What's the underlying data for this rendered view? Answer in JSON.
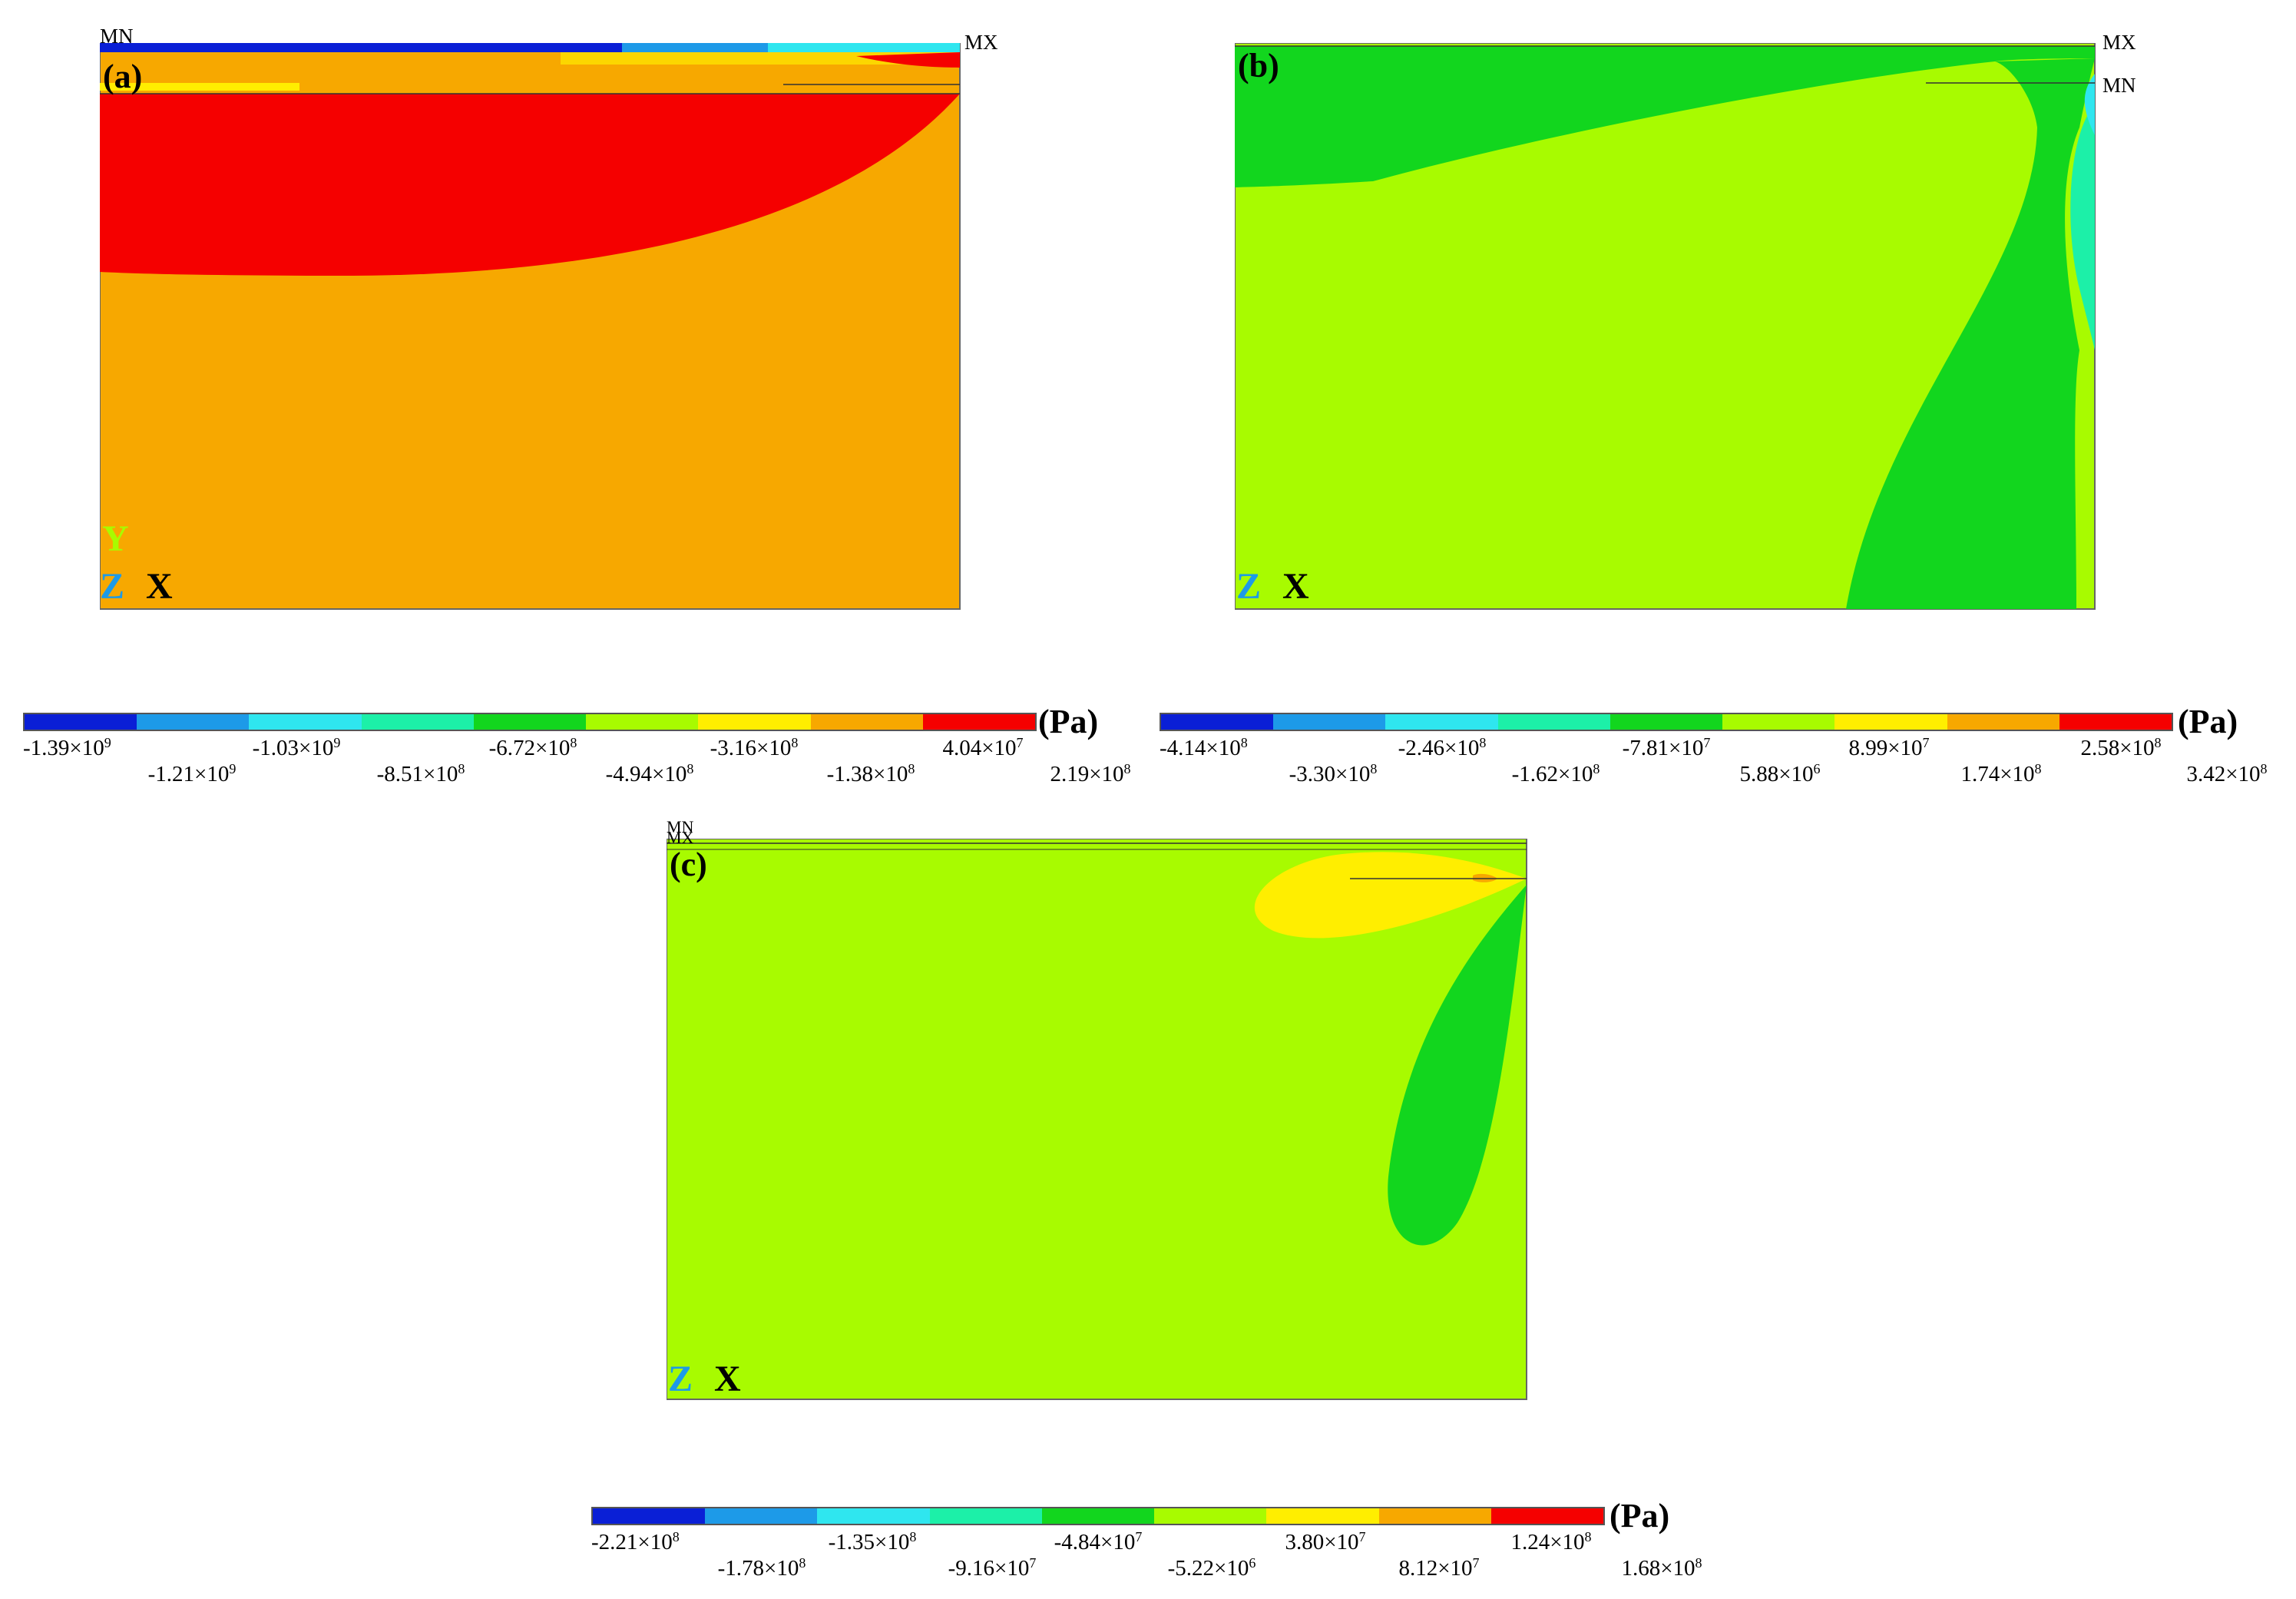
{
  "colormap": [
    "#0a1fd6",
    "#1d9ae8",
    "#2fe6ef",
    "#1cf0a8",
    "#12d61e",
    "#a8fb00",
    "#ffee00",
    "#f7a800",
    "#f50000"
  ],
  "panels": [
    {
      "id": "a",
      "label": "(a)",
      "mn": "MN",
      "mx": "MX",
      "axes": {
        "y": "Y",
        "z": "Z",
        "x": "X"
      },
      "unit": "(Pa)",
      "ticks_top": [
        "-1.39×10",
        "-1.03×10",
        "-6.72×10",
        "-3.16×10",
        "4.04×10"
      ],
      "exps_top": [
        "9",
        "9",
        "8",
        "8",
        "7"
      ],
      "ticks_bottom": [
        "-1.21×10",
        "-8.51×10",
        "-4.94×10",
        "-1.38×10",
        "2.19×10"
      ],
      "exps_bottom": [
        "9",
        "8",
        "8",
        "8",
        "8"
      ]
    },
    {
      "id": "b",
      "label": "(b)",
      "mn": "MN",
      "mx": "MX",
      "axes": {
        "z": "Z",
        "x": "X"
      },
      "unit": "(Pa)",
      "ticks_top": [
        "-4.14×10",
        "-2.46×10",
        "-7.81×10",
        "8.99×10",
        "2.58×10"
      ],
      "exps_top": [
        "8",
        "8",
        "7",
        "7",
        "8"
      ],
      "ticks_bottom": [
        "-3.30×10",
        "-1.62×10",
        "5.88×10",
        "1.74×10",
        "3.42×10"
      ],
      "exps_bottom": [
        "8",
        "8",
        "6",
        "8",
        "8"
      ]
    },
    {
      "id": "c",
      "label": "(c)",
      "mn": "MN",
      "mx": "MX",
      "axes": {
        "z": "Z",
        "x": "X"
      },
      "unit": "(Pa)",
      "ticks_top": [
        "-2.21×10",
        "-1.35×10",
        "-4.84×10",
        "3.80×10",
        "1.24×10"
      ],
      "exps_top": [
        "8",
        "8",
        "7",
        "7",
        "8"
      ],
      "ticks_bottom": [
        "-1.78×10",
        "-9.16×10",
        "-5.22×10",
        "8.12×10",
        "1.68×10"
      ],
      "exps_bottom": [
        "8",
        "7",
        "6",
        "7",
        "8"
      ]
    }
  ]
}
